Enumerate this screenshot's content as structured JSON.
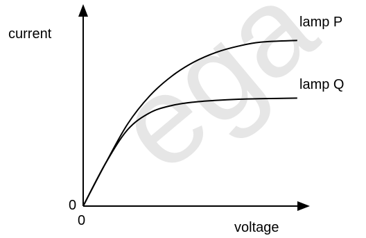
{
  "chart_data": {
    "type": "line",
    "ylabel": "current",
    "xlabel": "voltage",
    "origin_x_label": "0",
    "origin_y_label": "0",
    "series": [
      {
        "name": "lamp P",
        "points": [
          [
            0,
            0
          ],
          [
            1,
            0.75
          ],
          [
            2,
            1.45
          ],
          [
            3,
            1.95
          ],
          [
            4,
            2.3
          ],
          [
            5,
            2.55
          ],
          [
            6,
            2.72
          ],
          [
            7,
            2.83
          ],
          [
            8,
            2.9
          ]
        ]
      },
      {
        "name": "lamp Q",
        "points": [
          [
            0,
            0
          ],
          [
            1,
            0.75
          ],
          [
            2,
            1.35
          ],
          [
            3,
            1.65
          ],
          [
            4,
            1.78
          ],
          [
            5,
            1.84
          ],
          [
            6,
            1.87
          ],
          [
            7,
            1.89
          ],
          [
            8,
            1.9
          ]
        ]
      }
    ],
    "xlim": [
      0,
      10
    ],
    "ylim": [
      0,
      3.4
    ],
    "grid": false,
    "legend": "none",
    "watermark_text": "ega"
  }
}
